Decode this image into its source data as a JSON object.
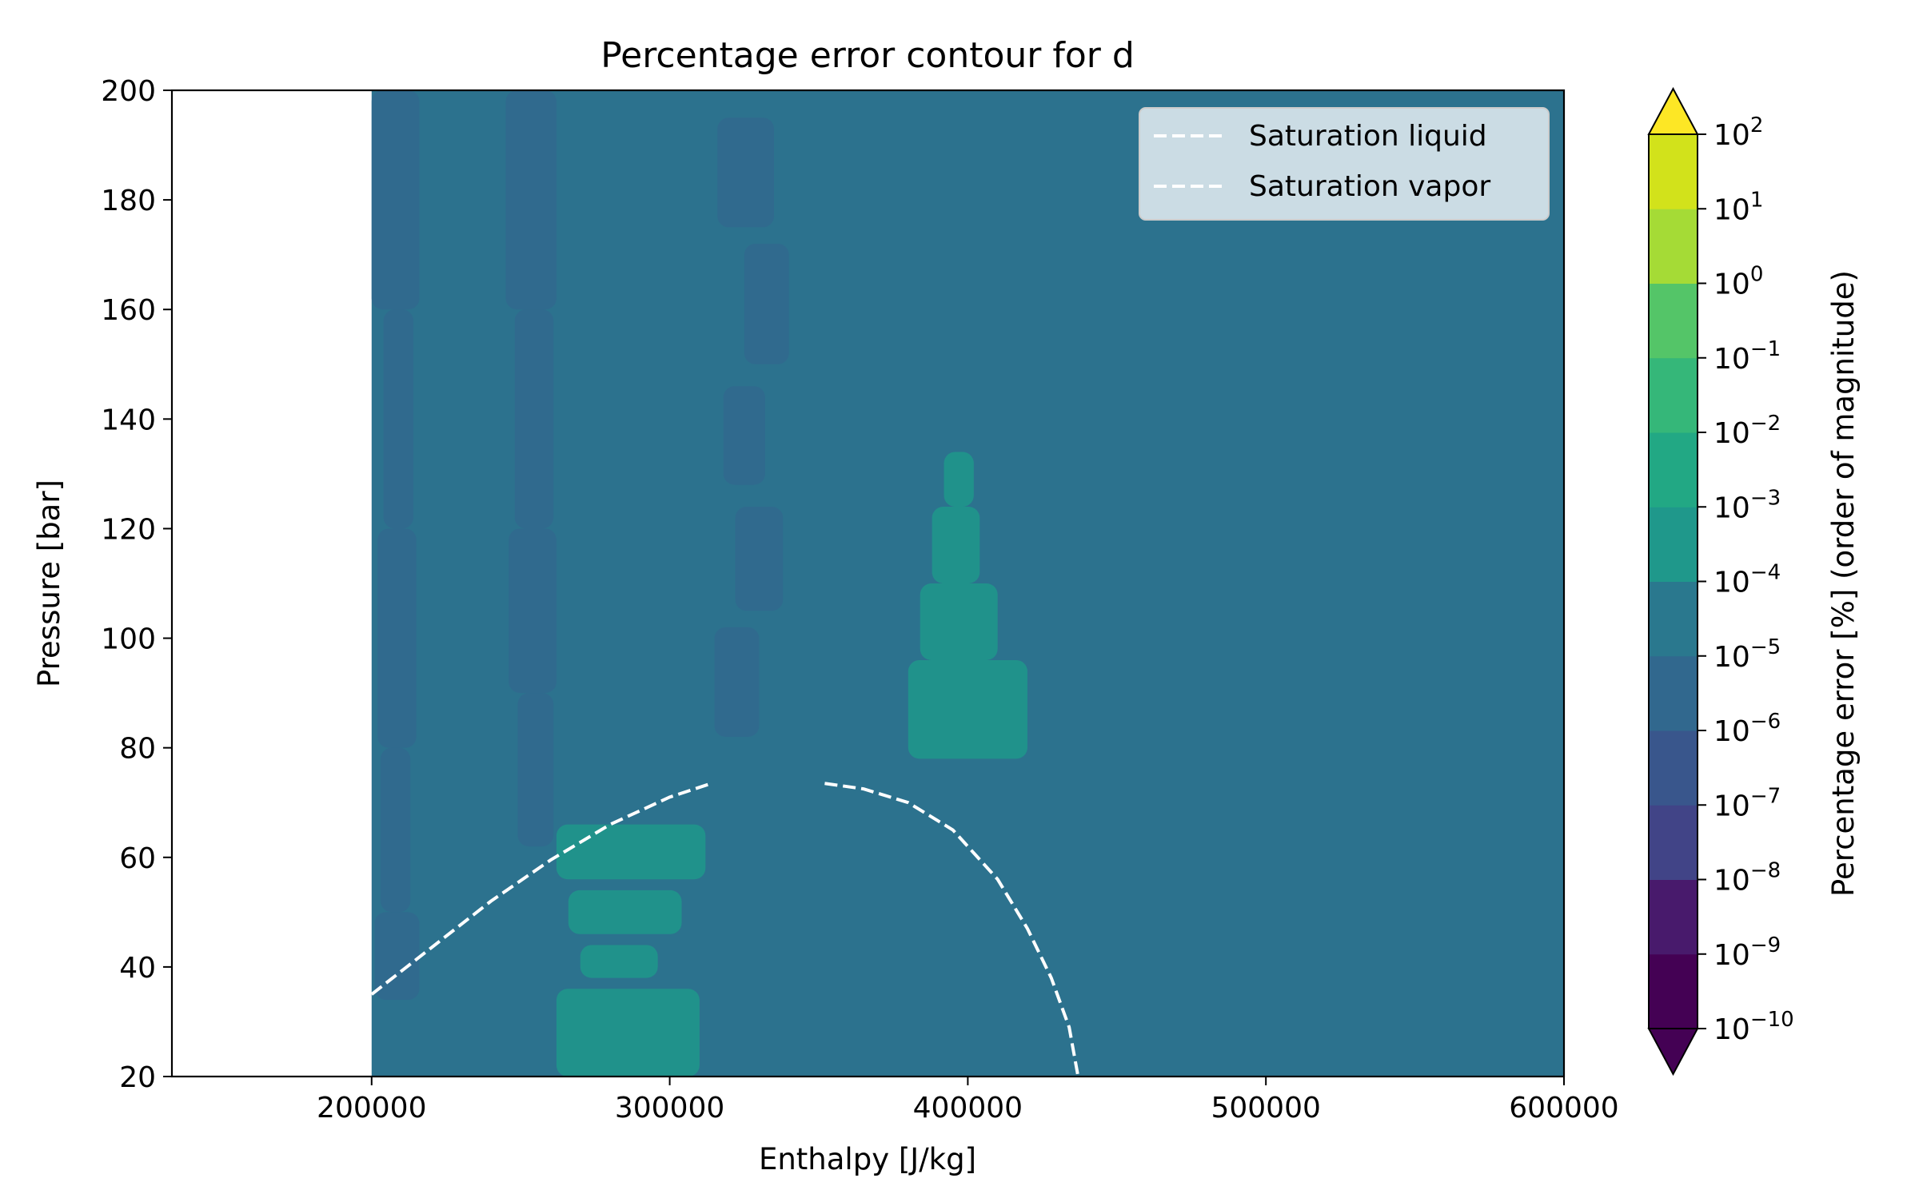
{
  "chart_data": {
    "type": "contour",
    "title": "Percentage error contour for d",
    "xlabel": "Enthalpy [J/kg]",
    "ylabel": "Pressure [bar]",
    "xlim": [
      133000,
      600000
    ],
    "ylim": [
      20,
      200
    ],
    "xticks": [
      200000,
      300000,
      400000,
      500000,
      600000
    ],
    "xtick_labels": [
      "200000",
      "300000",
      "400000",
      "500000",
      "600000"
    ],
    "yticks": [
      20,
      40,
      60,
      80,
      100,
      120,
      140,
      160,
      180,
      200
    ],
    "ytick_labels": [
      "20",
      "40",
      "60",
      "80",
      "100",
      "120",
      "140",
      "160",
      "180",
      "200"
    ],
    "contour_extent": {
      "x": [
        200000,
        600000
      ],
      "y": [
        20,
        200
      ]
    },
    "colorbar": {
      "label": "Percentage error [%] (order of magnitude)",
      "levels": [
        -10,
        -9,
        -8,
        -7,
        -6,
        -5,
        -4,
        -3,
        -2,
        -1,
        0,
        1,
        2
      ],
      "tick_base": "10",
      "tick_exponents": [
        "−10",
        "−9",
        "−8",
        "−7",
        "−6",
        "−5",
        "−4",
        "−3",
        "−2",
        "−1",
        "0",
        "1",
        "2"
      ],
      "colors": [
        "#440154",
        "#481a6c",
        "#472f7d",
        "#414487",
        "#39568c",
        "#31688e",
        "#2a788e",
        "#23888e",
        "#1f988b",
        "#22a884",
        "#35b779",
        "#54c568",
        "#7ad151",
        "#a5db36",
        "#d2e21b",
        "#fde725"
      ],
      "extend": "both",
      "under_color": "#440154",
      "over_color": "#fde725"
    },
    "background_level_color": "#2c728e",
    "series": [
      {
        "name": "Saturation liquid",
        "style": "dashed",
        "color": "#ffffff",
        "x": [
          200000,
          220000,
          240000,
          260000,
          280000,
          300000,
          314000
        ],
        "y": [
          35,
          43.5,
          52,
          59.5,
          66,
          71,
          73.5
        ]
      },
      {
        "name": "Saturation vapor",
        "style": "dashed",
        "color": "#ffffff",
        "x": [
          352000,
          365000,
          380000,
          395000,
          410000,
          420000,
          428000,
          434000,
          437000
        ],
        "y": [
          73.5,
          72.5,
          70,
          65,
          56,
          47,
          38,
          29,
          20
        ]
      }
    ],
    "legend": {
      "position": "top-right"
    },
    "regions": {
      "low": [
        {
          "x": [
            [
              200000,
              216000
            ],
            [
              204000,
              214000
            ],
            [
              202000,
              215000
            ],
            [
              203000,
              213000
            ],
            [
              201000,
              216000
            ]
          ],
          "y": [
            [
              200,
              160
            ],
            [
              160,
              120
            ],
            [
              120,
              80
            ],
            [
              80,
              50
            ],
            [
              50,
              34
            ]
          ]
        },
        {
          "x": [
            [
              245000,
              262000
            ],
            [
              248000,
              261000
            ],
            [
              246000,
              262000
            ],
            [
              249000,
              261000
            ]
          ],
          "y": [
            [
              200,
              160
            ],
            [
              160,
              120
            ],
            [
              120,
              90
            ],
            [
              90,
              62
            ]
          ]
        },
        {
          "x": [
            [
              316000,
              335000
            ],
            [
              325000,
              340000
            ],
            [
              318000,
              332000
            ],
            [
              322000,
              338000
            ],
            [
              315000,
              330000
            ]
          ],
          "y": [
            [
              195,
              175
            ],
            [
              172,
              150
            ],
            [
              146,
              128
            ],
            [
              124,
              105
            ],
            [
              102,
              82
            ]
          ]
        }
      ],
      "high": [
        {
          "x": [
            [
              262000,
              312000
            ],
            [
              266000,
              304000
            ],
            [
              270000,
              296000
            ],
            [
              262000,
              310000
            ]
          ],
          "y": [
            [
              66,
              56
            ],
            [
              54,
              46
            ],
            [
              44,
              38
            ],
            [
              36,
              20
            ]
          ]
        },
        {
          "x": [
            [
              380000,
              420000
            ],
            [
              384000,
              410000
            ],
            [
              388000,
              404000
            ],
            [
              392000,
              402000
            ]
          ],
          "y": [
            [
              96,
              78
            ],
            [
              110,
              96
            ],
            [
              124,
              110
            ],
            [
              134,
              124
            ]
          ]
        }
      ]
    }
  }
}
